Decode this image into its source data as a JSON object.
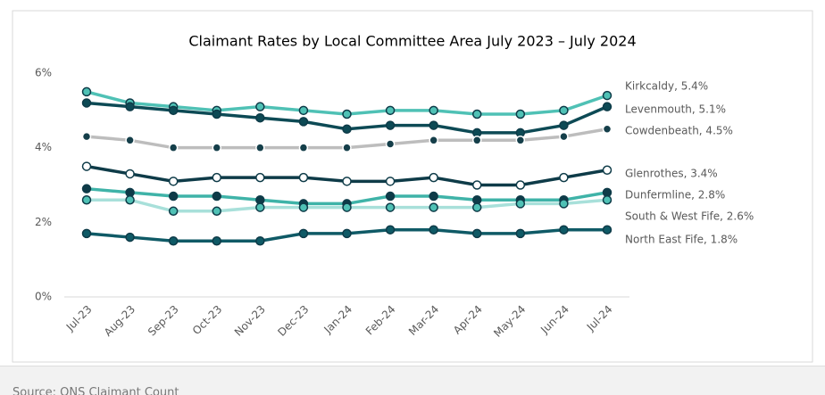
{
  "chart_data": {
    "type": "line",
    "title": "Claimant Rates by Local Committee Area July 2023 – July 2024",
    "categories": [
      "Jul-23",
      "Aug-23",
      "Sep-23",
      "Oct-23",
      "Nov-23",
      "Dec-23",
      "Jan-24",
      "Feb-24",
      "Mar-24",
      "Apr-24",
      "May-24",
      "Jun-24",
      "Jul-24"
    ],
    "ylim": [
      0,
      6
    ],
    "yticks": [
      {
        "value": 0,
        "label": "0%"
      },
      {
        "value": 2,
        "label": "2%"
      },
      {
        "value": 4,
        "label": "4%"
      },
      {
        "value": 6,
        "label": "6%"
      }
    ],
    "grid": false,
    "series": [
      {
        "name": "Kirkcaldy, 5.4%",
        "color": "#4fc1b5",
        "marker": "#4fc1b5",
        "values": [
          5.5,
          5.2,
          5.1,
          5.0,
          5.1,
          5.0,
          4.9,
          5.0,
          5.0,
          4.9,
          4.9,
          5.0,
          5.4
        ]
      },
      {
        "name": "Levenmouth, 5.1%",
        "color": "#0d4a55",
        "marker": "#0d4a55",
        "values": [
          5.2,
          5.1,
          5.0,
          4.9,
          4.8,
          4.7,
          4.5,
          4.6,
          4.6,
          4.4,
          4.4,
          4.6,
          5.1
        ]
      },
      {
        "name": "Cowdenbeath, 4.5%",
        "color": "#bdbdbd",
        "marker": "#153f4a",
        "values": [
          4.3,
          4.2,
          4.0,
          4.0,
          4.0,
          4.0,
          4.0,
          4.1,
          4.2,
          4.2,
          4.2,
          4.3,
          4.5
        ]
      },
      {
        "name": "Glenrothes, 3.4%",
        "color": "#0e3b48",
        "marker": "#ffffff",
        "values": [
          3.5,
          3.3,
          3.1,
          3.2,
          3.2,
          3.2,
          3.1,
          3.1,
          3.2,
          3.0,
          3.0,
          3.2,
          3.4
        ]
      },
      {
        "name": "Dunfermline, 2.8%",
        "color": "#3fb3a8",
        "marker": "#0e3b48",
        "values": [
          2.9,
          2.8,
          2.7,
          2.7,
          2.6,
          2.5,
          2.5,
          2.7,
          2.7,
          2.6,
          2.6,
          2.6,
          2.8
        ]
      },
      {
        "name": "South & West Fife, 2.6%",
        "color": "#a8e0da",
        "marker": "#4fc1b5",
        "values": [
          2.6,
          2.6,
          2.3,
          2.3,
          2.4,
          2.4,
          2.4,
          2.4,
          2.4,
          2.4,
          2.5,
          2.5,
          2.6
        ]
      },
      {
        "name": "North East Fife, 1.8%",
        "color": "#0f5a66",
        "marker": "#0f5a66",
        "values": [
          1.7,
          1.6,
          1.5,
          1.5,
          1.5,
          1.7,
          1.7,
          1.8,
          1.8,
          1.7,
          1.7,
          1.8,
          1.8
        ]
      }
    ],
    "source": "Source: ONS Claimant Count"
  }
}
